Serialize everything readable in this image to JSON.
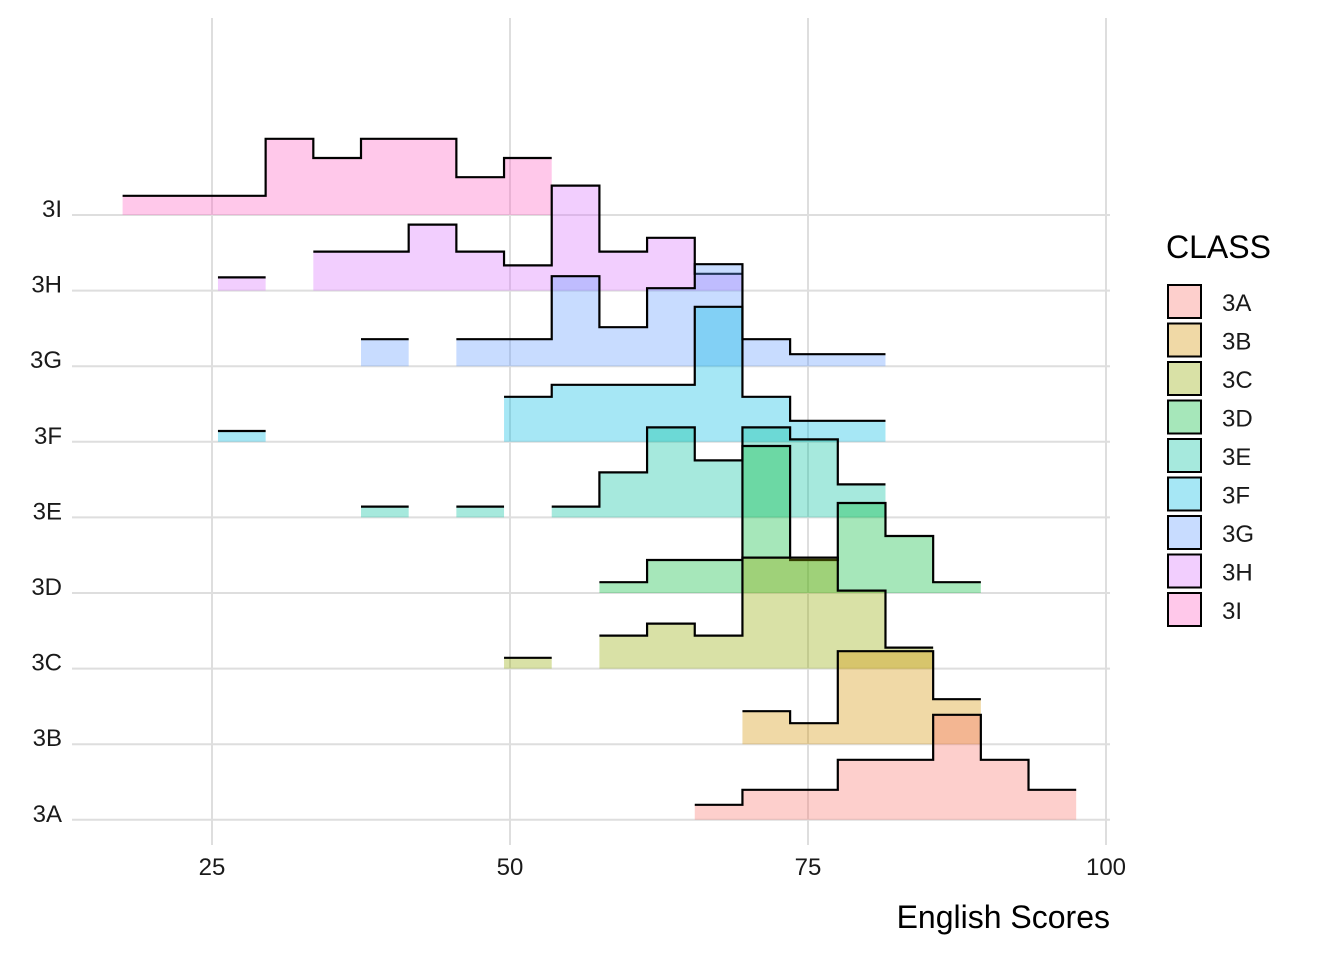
{
  "chart_data": {
    "type": "ridgeline-histogram",
    "xlabel": "English Scores",
    "ylabel": "",
    "xlim": [
      13,
      102
    ],
    "xticks": [
      25,
      50,
      75,
      100
    ],
    "bin_width": 4,
    "grid": true,
    "legend": {
      "title": "CLASS",
      "position": "right"
    },
    "categories": [
      "3A",
      "3B",
      "3C",
      "3D",
      "3E",
      "3F",
      "3G",
      "3H",
      "3I"
    ],
    "series": [
      {
        "name": "3A",
        "color": "#F8766D",
        "bins": [
          {
            "x0": 65.5,
            "x1": 69.5,
            "h": 0.25
          },
          {
            "x0": 69.5,
            "x1": 77.5,
            "h": 0.5
          },
          {
            "x0": 77.5,
            "x1": 85.5,
            "h": 1.0
          },
          {
            "x0": 85.5,
            "x1": 89.5,
            "h": 1.75
          },
          {
            "x0": 89.5,
            "x1": 93.5,
            "h": 1.0
          },
          {
            "x0": 93.5,
            "x1": 97.5,
            "h": 0.5
          }
        ]
      },
      {
        "name": "3B",
        "color": "#D39200",
        "bins": [
          {
            "x0": 69.5,
            "x1": 73.5,
            "h": 0.55
          },
          {
            "x0": 73.5,
            "x1": 77.5,
            "h": 0.35
          },
          {
            "x0": 77.5,
            "x1": 85.5,
            "h": 1.55
          },
          {
            "x0": 85.5,
            "x1": 89.5,
            "h": 0.75
          }
        ]
      },
      {
        "name": "3C",
        "color": "#93AA00",
        "bins": [
          {
            "x0": 49.5,
            "x1": 53.5,
            "h": 0.18
          },
          {
            "x0": 57.5,
            "x1": 61.5,
            "h": 0.55
          },
          {
            "x0": 61.5,
            "x1": 65.5,
            "h": 0.75
          },
          {
            "x0": 65.5,
            "x1": 69.5,
            "h": 0.55
          },
          {
            "x0": 69.5,
            "x1": 77.5,
            "h": 1.85
          },
          {
            "x0": 77.5,
            "x1": 81.5,
            "h": 1.3
          },
          {
            "x0": 81.5,
            "x1": 85.5,
            "h": 0.35
          }
        ]
      },
      {
        "name": "3D",
        "color": "#00BA38",
        "bins": [
          {
            "x0": 57.5,
            "x1": 61.5,
            "h": 0.18
          },
          {
            "x0": 61.5,
            "x1": 69.5,
            "h": 0.55
          },
          {
            "x0": 69.5,
            "x1": 73.5,
            "h": 2.45
          },
          {
            "x0": 73.5,
            "x1": 77.5,
            "h": 0.55
          },
          {
            "x0": 77.5,
            "x1": 81.5,
            "h": 1.5
          },
          {
            "x0": 81.5,
            "x1": 85.5,
            "h": 0.95
          },
          {
            "x0": 85.5,
            "x1": 89.5,
            "h": 0.18
          }
        ]
      },
      {
        "name": "3E",
        "color": "#00C19F",
        "bins": [
          {
            "x0": 37.5,
            "x1": 41.5,
            "h": 0.18
          },
          {
            "x0": 45.5,
            "x1": 49.5,
            "h": 0.18
          },
          {
            "x0": 53.5,
            "x1": 57.5,
            "h": 0.18
          },
          {
            "x0": 57.5,
            "x1": 61.5,
            "h": 0.75
          },
          {
            "x0": 61.5,
            "x1": 65.5,
            "h": 1.5
          },
          {
            "x0": 65.5,
            "x1": 69.5,
            "h": 0.95
          },
          {
            "x0": 69.5,
            "x1": 73.5,
            "h": 1.5
          },
          {
            "x0": 73.5,
            "x1": 77.5,
            "h": 1.3
          },
          {
            "x0": 77.5,
            "x1": 81.5,
            "h": 0.55
          }
        ]
      },
      {
        "name": "3F",
        "color": "#00B9E3",
        "bins": [
          {
            "x0": 25.5,
            "x1": 29.5,
            "h": 0.18
          },
          {
            "x0": 49.5,
            "x1": 53.5,
            "h": 0.75
          },
          {
            "x0": 53.5,
            "x1": 65.5,
            "h": 0.95
          },
          {
            "x0": 65.5,
            "x1": 69.5,
            "h": 2.25
          },
          {
            "x0": 69.5,
            "x1": 73.5,
            "h": 0.75
          },
          {
            "x0": 73.5,
            "x1": 77.5,
            "h": 0.35
          },
          {
            "x0": 77.5,
            "x1": 81.5,
            "h": 0.35
          }
        ]
      },
      {
        "name": "3G",
        "color": "#619CFF",
        "bins": [
          {
            "x0": 37.5,
            "x1": 41.5,
            "h": 0.45
          },
          {
            "x0": 45.5,
            "x1": 53.5,
            "h": 0.45
          },
          {
            "x0": 53.5,
            "x1": 57.5,
            "h": 1.5
          },
          {
            "x0": 57.5,
            "x1": 61.5,
            "h": 0.65
          },
          {
            "x0": 61.5,
            "x1": 65.5,
            "h": 1.3
          },
          {
            "x0": 65.5,
            "x1": 69.5,
            "h": 1.7
          },
          {
            "x0": 69.5,
            "x1": 73.5,
            "h": 0.45
          },
          {
            "x0": 73.5,
            "x1": 81.5,
            "h": 0.2
          }
        ]
      },
      {
        "name": "3H",
        "color": "#DB72FB",
        "bins": [
          {
            "x0": 25.5,
            "x1": 29.5,
            "h": 0.22
          },
          {
            "x0": 33.5,
            "x1": 41.5,
            "h": 0.65
          },
          {
            "x0": 41.5,
            "x1": 45.5,
            "h": 1.1
          },
          {
            "x0": 45.5,
            "x1": 49.5,
            "h": 0.65
          },
          {
            "x0": 49.5,
            "x1": 53.5,
            "h": 0.42
          },
          {
            "x0": 53.5,
            "x1": 57.5,
            "h": 1.75
          },
          {
            "x0": 57.5,
            "x1": 61.5,
            "h": 0.65
          },
          {
            "x0": 61.5,
            "x1": 65.5,
            "h": 0.88
          },
          {
            "x0": 65.5,
            "x1": 69.5,
            "h": 0.28
          }
        ]
      },
      {
        "name": "3I",
        "color": "#FF61C3",
        "bins": [
          {
            "x0": 17.5,
            "x1": 29.5,
            "h": 0.32
          },
          {
            "x0": 29.5,
            "x1": 33.5,
            "h": 1.27
          },
          {
            "x0": 33.5,
            "x1": 37.5,
            "h": 0.95
          },
          {
            "x0": 37.5,
            "x1": 45.5,
            "h": 1.27
          },
          {
            "x0": 45.5,
            "x1": 49.5,
            "h": 0.63
          },
          {
            "x0": 49.5,
            "x1": 53.5,
            "h": 0.95
          }
        ]
      }
    ]
  }
}
